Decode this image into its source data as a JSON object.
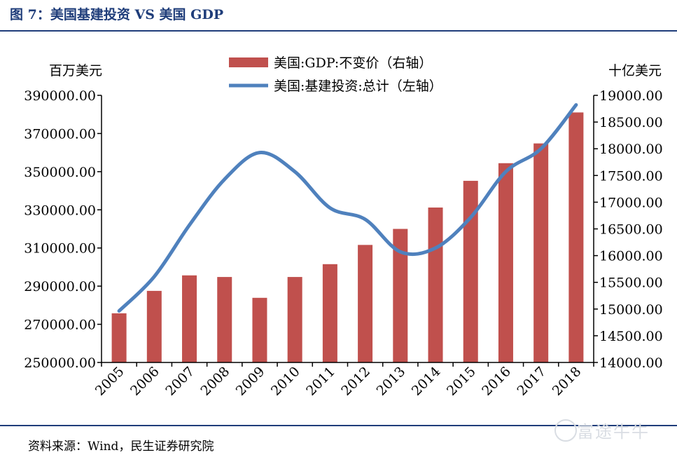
{
  "title": "图 7：美国基建投资 VS  美国 GDP",
  "source": "资料来源：Wind，民生证券研究院",
  "watermark": "富途牛牛",
  "colors": {
    "bar": "#c0504d",
    "line": "#4f81bd",
    "brand": "#1f3d7a"
  },
  "chart_data": {
    "type": "bar",
    "categories": [
      "2005",
      "2006",
      "2007",
      "2008",
      "2009",
      "2010",
      "2011",
      "2012",
      "2013",
      "2014",
      "2015",
      "2016",
      "2017",
      "2018"
    ],
    "left_axis": {
      "unit_label": "百万美元",
      "range": [
        250000,
        390000
      ],
      "ticks": [
        "250000.00",
        "270000.00",
        "290000.00",
        "310000.00",
        "330000.00",
        "350000.00",
        "370000.00",
        "390000.00"
      ]
    },
    "right_axis": {
      "unit_label": "十亿美元",
      "range": [
        14000,
        19000
      ],
      "ticks": [
        "14000.00",
        "14500.00",
        "15000.00",
        "15500.00",
        "16000.00",
        "16500.00",
        "17000.00",
        "17500.00",
        "18000.00",
        "18500.00",
        "19000.00"
      ]
    },
    "series": [
      {
        "name": "美国:GDP:不变价（右轴）",
        "type": "bar",
        "axis": "right",
        "values": [
          14920,
          15340,
          15630,
          15600,
          15210,
          15600,
          15840,
          16200,
          16500,
          16900,
          17400,
          17730,
          18100,
          18680
        ]
      },
      {
        "name": "美国:基建投资:总计（左轴）",
        "type": "line",
        "axis": "left",
        "values": [
          277000,
          295000,
          322000,
          346000,
          360000,
          350000,
          331000,
          325000,
          308000,
          310000,
          326000,
          350000,
          362000,
          385000
        ]
      }
    ]
  }
}
